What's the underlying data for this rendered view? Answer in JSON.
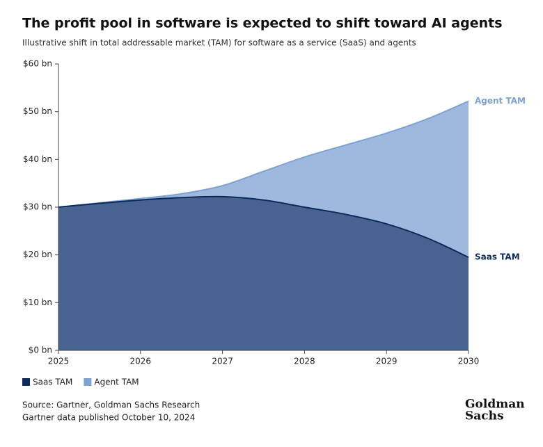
{
  "chart_data": {
    "type": "area",
    "title": "The profit pool in software is expected to shift toward AI agents",
    "subtitle": "Illustrative shift in total addressable market (TAM) for software as a service (SaaS) and agents",
    "x": [
      2025,
      2025.5,
      2026,
      2026.5,
      2027,
      2027.5,
      2028,
      2028.5,
      2029,
      2029.5,
      2030
    ],
    "series": [
      {
        "name": "Agent TAM",
        "color": "#7ea2d2",
        "values": [
          30,
          30.9,
          31.8,
          32.8,
          34.5,
          37.5,
          40.5,
          43,
          45.5,
          48.5,
          52.2
        ]
      },
      {
        "name": "Saas TAM",
        "color": "#0d2a5c",
        "values": [
          30,
          30.8,
          31.5,
          32,
          32.2,
          31.5,
          30,
          28.5,
          26.5,
          23.5,
          19.5
        ]
      }
    ],
    "legend": [
      "Saas TAM",
      "Agent TAM"
    ],
    "xlim": [
      2025,
      2030
    ],
    "xticks": [
      2025,
      2026,
      2027,
      2028,
      2029,
      2030
    ],
    "ylim": [
      0,
      60
    ],
    "yticks": [
      {
        "value": 0,
        "label": "$0 bn"
      },
      {
        "value": 10,
        "label": "$10 bn"
      },
      {
        "value": 20,
        "label": "$20 bn"
      },
      {
        "value": 30,
        "label": "$30 bn"
      },
      {
        "value": 40,
        "label": "$40 bn"
      },
      {
        "value": 50,
        "label": "$50 bn"
      },
      {
        "value": 60,
        "label": "$60 bn"
      }
    ],
    "source": [
      "Source: Gartner, Goldman Sachs Research",
      "Gartner data published October 10, 2024"
    ],
    "logo": [
      "Goldman",
      "Sachs"
    ]
  }
}
